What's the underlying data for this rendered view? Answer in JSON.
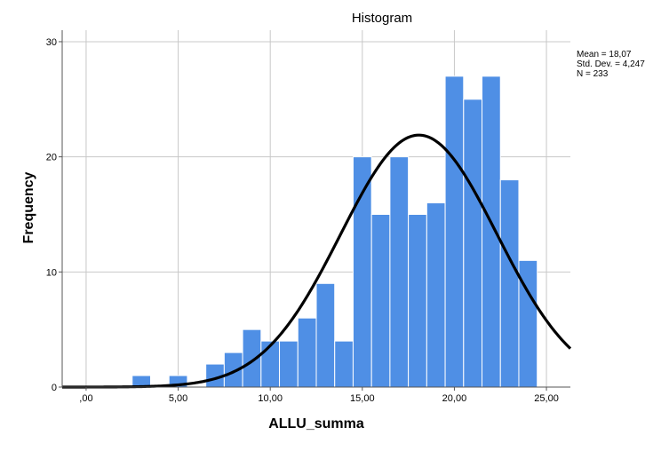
{
  "chart_data": {
    "type": "bar",
    "title": "Histogram",
    "xlabel": "ALLU_summa",
    "ylabel": "Frequency",
    "xlim": [
      -1.3,
      26.3
    ],
    "ylim": [
      0,
      31
    ],
    "x_ticks": [
      0,
      5,
      10,
      15,
      20,
      25
    ],
    "x_tick_labels": [
      ",00",
      "5,00",
      "10,00",
      "15,00",
      "20,00",
      "25,00"
    ],
    "y_ticks": [
      0,
      10,
      20,
      30
    ],
    "y_tick_labels": [
      "0",
      "10",
      "20",
      "30"
    ],
    "grid": true,
    "bin_width": 1,
    "bins": [
      {
        "start": 2.5,
        "end": 3.5,
        "count": 1
      },
      {
        "start": 4.5,
        "end": 5.5,
        "count": 1
      },
      {
        "start": 6.5,
        "end": 7.5,
        "count": 2
      },
      {
        "start": 7.5,
        "end": 8.5,
        "count": 3
      },
      {
        "start": 8.5,
        "end": 9.5,
        "count": 5
      },
      {
        "start": 9.5,
        "end": 10.5,
        "count": 4
      },
      {
        "start": 10.5,
        "end": 11.5,
        "count": 4
      },
      {
        "start": 11.5,
        "end": 12.5,
        "count": 6
      },
      {
        "start": 12.5,
        "end": 13.5,
        "count": 9
      },
      {
        "start": 13.5,
        "end": 14.5,
        "count": 4
      },
      {
        "start": 14.5,
        "end": 15.5,
        "count": 20
      },
      {
        "start": 15.5,
        "end": 16.5,
        "count": 15
      },
      {
        "start": 16.5,
        "end": 17.5,
        "count": 20
      },
      {
        "start": 17.5,
        "end": 18.5,
        "count": 15
      },
      {
        "start": 18.5,
        "end": 19.5,
        "count": 16
      },
      {
        "start": 19.5,
        "end": 20.5,
        "count": 27
      },
      {
        "start": 20.5,
        "end": 21.5,
        "count": 25
      },
      {
        "start": 21.5,
        "end": 22.5,
        "count": 27
      },
      {
        "start": 22.5,
        "end": 23.5,
        "count": 18
      },
      {
        "start": 23.5,
        "end": 24.5,
        "count": 11
      }
    ],
    "normal_curve": {
      "mean": 18.07,
      "std_dev": 4.247,
      "n": 233
    },
    "stats_lines": [
      "Mean = 18,07",
      "Std. Dev. = 4,247",
      "N = 233"
    ],
    "legend_position": "top-right",
    "colors": {
      "bar": "#4f8fe5",
      "bar_edge": "#ffffff",
      "curve": "#000000",
      "grid": "#c8c8c8",
      "axis": "#555555"
    }
  }
}
